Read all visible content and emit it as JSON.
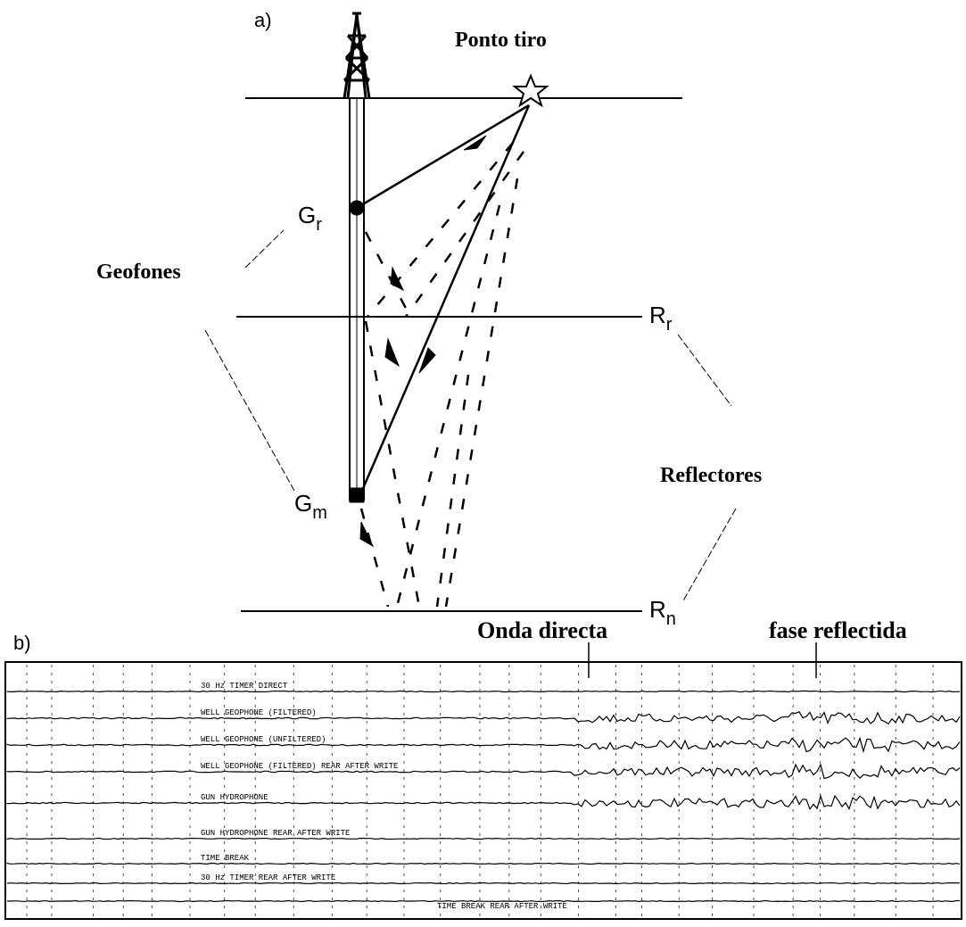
{
  "diagram": {
    "panel_a": {
      "label": "a)",
      "source": "Ponto tiro",
      "geophones": "Geofones",
      "reflectors": "Reflectores",
      "g_top": {
        "base": "G",
        "sub": "r"
      },
      "g_bottom": {
        "base": "G",
        "sub": "m"
      },
      "r_top": {
        "base": "R",
        "sub": "r"
      },
      "r_bottom": {
        "base": "R",
        "sub": "n"
      }
    },
    "panel_b": {
      "label": "b)",
      "direct": "Onda directa",
      "reflected": "fase reflectida",
      "traces": [
        "30 Hz TIMER DIRECT",
        "WELL GEOPHONE (FILTERED)",
        "WELL GEOPHONE (UNFILTERED)",
        "WELL GEOPHONE (FILTERED) REAR AFTER WRITE",
        "GUN HYDROPHONE",
        "GUN HYDROPHONE REAR AFTER WRITE",
        "TIME BREAK",
        "30 Hz TIMER REAR AFTER WRITE",
        "TIME BREAK REAR AFTER WRITE"
      ]
    }
  }
}
